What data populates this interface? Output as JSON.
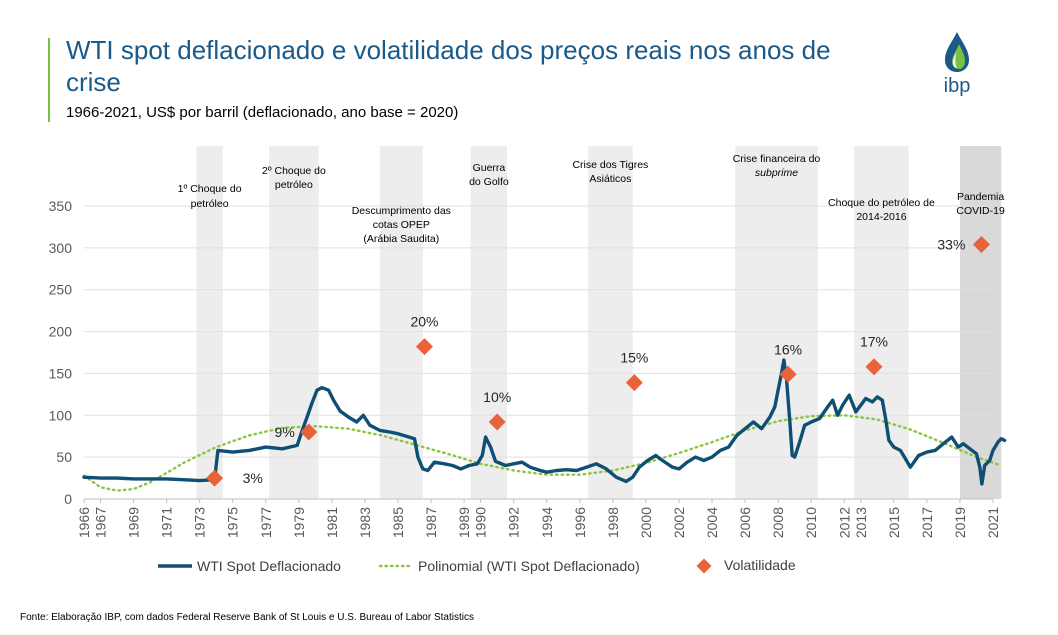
{
  "header": {
    "title": "WTI spot deflacionado e volatilidade dos preços reais nos anos de crise",
    "subtitle": "1966-2021, US$ por barril (deflacionado, ano base = 2020)",
    "logo_text": "ibp"
  },
  "footer": {
    "source": "Fonte: Elaboração IBP, com dados Federal Reserve Bank of St Louis e U.S. Bureau of Labor Statistics"
  },
  "colors": {
    "wti": "#0e4f73",
    "poly": "#8cc63f",
    "vol": "#e8623a",
    "band": "#ededed",
    "band_dark": "#d9d9d9",
    "axis_text": "#595959",
    "title": "#1a5a8a"
  },
  "chart_data": {
    "type": "line",
    "title": "",
    "xlabel": "",
    "ylabel": "",
    "ylim": [
      0,
      350
    ],
    "yticks": [
      0,
      50,
      100,
      150,
      200,
      250,
      300,
      350
    ],
    "xlim": [
      1966,
      2021
    ],
    "xticks": [
      1966,
      1967,
      1969,
      1971,
      1973,
      1975,
      1977,
      1979,
      1981,
      1983,
      1985,
      1987,
      1989,
      1990,
      1992,
      1994,
      1996,
      1998,
      2000,
      2002,
      2004,
      2006,
      2008,
      2010,
      2012,
      2013,
      2015,
      2017,
      2019,
      2021
    ],
    "grid": "horizontal",
    "legend_position": "bottom",
    "legend": [
      "WTI Spot Deflacionado",
      "Polinomial (WTI Spot Deflacionado)",
      "Volatilidade"
    ],
    "series": [
      {
        "name": "WTI Spot Deflacionado",
        "points": [
          [
            1966,
            26
          ],
          [
            1967,
            25
          ],
          [
            1968,
            25
          ],
          [
            1969,
            24
          ],
          [
            1970,
            24
          ],
          [
            1971,
            24
          ],
          [
            1972,
            23
          ],
          [
            1973.0,
            22
          ],
          [
            1973.9,
            23
          ],
          [
            1974.1,
            58
          ],
          [
            1975,
            56
          ],
          [
            1976,
            58
          ],
          [
            1977,
            62
          ],
          [
            1978,
            60
          ],
          [
            1978.9,
            64
          ],
          [
            1979.2,
            82
          ],
          [
            1979.5,
            98
          ],
          [
            1979.8,
            115
          ],
          [
            1980.1,
            130
          ],
          [
            1980.4,
            133
          ],
          [
            1980.8,
            130
          ],
          [
            1981.1,
            118
          ],
          [
            1981.5,
            105
          ],
          [
            1982.0,
            98
          ],
          [
            1982.5,
            92
          ],
          [
            1982.9,
            100
          ],
          [
            1983.3,
            88
          ],
          [
            1983.9,
            82
          ],
          [
            1984.5,
            80
          ],
          [
            1985.0,
            78
          ],
          [
            1985.5,
            75
          ],
          [
            1986.0,
            72
          ],
          [
            1986.2,
            50
          ],
          [
            1986.5,
            36
          ],
          [
            1986.8,
            34
          ],
          [
            1987.2,
            44
          ],
          [
            1987.8,
            42
          ],
          [
            1988.3,
            40
          ],
          [
            1988.8,
            36
          ],
          [
            1989.3,
            40
          ],
          [
            1989.8,
            42
          ],
          [
            1990.1,
            52
          ],
          [
            1990.3,
            74
          ],
          [
            1990.6,
            62
          ],
          [
            1990.9,
            45
          ],
          [
            1991.5,
            40
          ],
          [
            1992.0,
            42
          ],
          [
            1992.5,
            44
          ],
          [
            1993.0,
            38
          ],
          [
            1993.6,
            34
          ],
          [
            1994.0,
            32
          ],
          [
            1994.6,
            34
          ],
          [
            1995.2,
            35
          ],
          [
            1995.8,
            34
          ],
          [
            1996.4,
            38
          ],
          [
            1997.0,
            42
          ],
          [
            1997.6,
            36
          ],
          [
            1998.2,
            26
          ],
          [
            1998.8,
            21
          ],
          [
            1999.2,
            26
          ],
          [
            1999.6,
            38
          ],
          [
            2000.1,
            46
          ],
          [
            2000.6,
            52
          ],
          [
            2001.0,
            46
          ],
          [
            2001.6,
            38
          ],
          [
            2002.0,
            36
          ],
          [
            2002.5,
            44
          ],
          [
            2003.0,
            50
          ],
          [
            2003.5,
            46
          ],
          [
            2004.0,
            50
          ],
          [
            2004.5,
            58
          ],
          [
            2005.0,
            62
          ],
          [
            2005.5,
            76
          ],
          [
            2006.0,
            84
          ],
          [
            2006.5,
            92
          ],
          [
            2007.0,
            84
          ],
          [
            2007.5,
            98
          ],
          [
            2007.8,
            110
          ],
          [
            2008.0,
            130
          ],
          [
            2008.2,
            150
          ],
          [
            2008.35,
            166
          ],
          [
            2008.5,
            145
          ],
          [
            2008.7,
            95
          ],
          [
            2008.85,
            52
          ],
          [
            2009.0,
            50
          ],
          [
            2009.3,
            68
          ],
          [
            2009.6,
            88
          ],
          [
            2010.0,
            92
          ],
          [
            2010.5,
            96
          ],
          [
            2011.0,
            110
          ],
          [
            2011.3,
            118
          ],
          [
            2011.6,
            100
          ],
          [
            2011.9,
            112
          ],
          [
            2012.3,
            124
          ],
          [
            2012.7,
            104
          ],
          [
            2013.0,
            112
          ],
          [
            2013.3,
            120
          ],
          [
            2013.7,
            116
          ],
          [
            2014.0,
            122
          ],
          [
            2014.3,
            118
          ],
          [
            2014.5,
            96
          ],
          [
            2014.7,
            70
          ],
          [
            2015.0,
            62
          ],
          [
            2015.4,
            58
          ],
          [
            2015.7,
            48
          ],
          [
            2016.0,
            38
          ],
          [
            2016.5,
            52
          ],
          [
            2017.0,
            56
          ],
          [
            2017.5,
            58
          ],
          [
            2018.0,
            66
          ],
          [
            2018.5,
            74
          ],
          [
            2018.9,
            62
          ],
          [
            2019.2,
            66
          ],
          [
            2019.6,
            60
          ],
          [
            2020.0,
            54
          ],
          [
            2020.2,
            38
          ],
          [
            2020.33,
            18
          ],
          [
            2020.5,
            40
          ],
          [
            2020.8,
            46
          ],
          [
            2021.0,
            58
          ],
          [
            2021.3,
            68
          ],
          [
            2021.5,
            72
          ],
          [
            2021.7,
            70
          ]
        ]
      },
      {
        "name": "Polinomial (WTI Spot Deflacionado)",
        "style": "dotted",
        "points": [
          [
            1966,
            28
          ],
          [
            1967,
            14
          ],
          [
            1968,
            10
          ],
          [
            1969,
            12
          ],
          [
            1970,
            20
          ],
          [
            1971,
            31
          ],
          [
            1972,
            43
          ],
          [
            1974,
            62
          ],
          [
            1976,
            76
          ],
          [
            1978,
            85
          ],
          [
            1980,
            87
          ],
          [
            1982,
            84
          ],
          [
            1984,
            76
          ],
          [
            1986,
            65
          ],
          [
            1988,
            54
          ],
          [
            1990,
            42
          ],
          [
            1992,
            34
          ],
          [
            1994,
            29
          ],
          [
            1996,
            29
          ],
          [
            1998,
            34
          ],
          [
            2000,
            43
          ],
          [
            2002,
            55
          ],
          [
            2004,
            68
          ],
          [
            2006,
            82
          ],
          [
            2008,
            93
          ],
          [
            2010,
            99
          ],
          [
            2012,
            100
          ],
          [
            2014,
            95
          ],
          [
            2016,
            83
          ],
          [
            2018,
            67
          ],
          [
            2020,
            50
          ],
          [
            2021.5,
            40
          ]
        ]
      },
      {
        "name": "Volatilidade",
        "type": "scatter",
        "points": [
          {
            "x": 1973.9,
            "y": 25,
            "label": "3%"
          },
          {
            "x": 1979.6,
            "y": 80,
            "label": "9%"
          },
          {
            "x": 1986.6,
            "y": 182,
            "label": "20%"
          },
          {
            "x": 1991.0,
            "y": 92,
            "label": "10%"
          },
          {
            "x": 1999.3,
            "y": 139,
            "label": "15%"
          },
          {
            "x": 2008.6,
            "y": 149,
            "label": "16%"
          },
          {
            "x": 2013.8,
            "y": 158,
            "label": "17%"
          },
          {
            "x": 2020.3,
            "y": 304,
            "label": "33%"
          }
        ]
      }
    ],
    "crisis_bands": [
      {
        "start": 1972.8,
        "end": 1974.4,
        "label_lines": [
          "1º Choque do",
          "petróleo"
        ],
        "shade": "light"
      },
      {
        "start": 1977.2,
        "end": 1980.2,
        "label_lines": [
          "2º Choque do",
          "petróleo"
        ],
        "shade": "light"
      },
      {
        "start": 1983.9,
        "end": 1986.5,
        "label_lines": [
          "Descumprimento das",
          "cotas OPEP",
          "(Arábia Saudita)"
        ],
        "shade": "light"
      },
      {
        "start": 1989.4,
        "end": 1991.6,
        "label_lines": [
          "Guerra",
          "do Golfo"
        ],
        "shade": "light"
      },
      {
        "start": 1996.5,
        "end": 1999.2,
        "label_lines": [
          "Crise dos Tigres",
          "Asiáticos"
        ],
        "shade": "light"
      },
      {
        "start": 2005.4,
        "end": 2010.4,
        "label_lines": [
          "Crise financeira do",
          "subprime"
        ],
        "italic_line": 1,
        "shade": "light"
      },
      {
        "start": 2012.6,
        "end": 2015.9,
        "label_lines": [
          "Choque do petróleo de",
          "2014-2016"
        ],
        "shade": "light"
      },
      {
        "start": 2019.0,
        "end": 2021.5,
        "label_lines": [
          "Pandemia",
          "COVID-19"
        ],
        "shade": "dark"
      }
    ]
  }
}
